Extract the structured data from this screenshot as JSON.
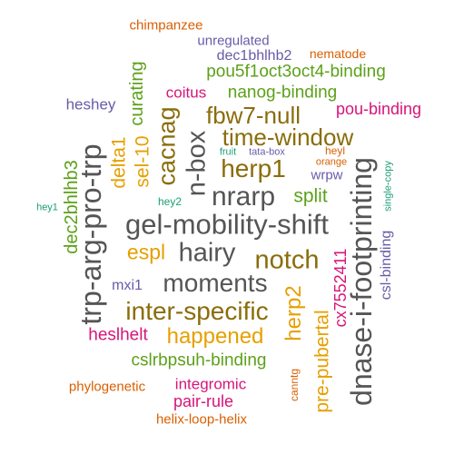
{
  "colors": {
    "gray": "#555555",
    "olive": "#8a6d0b",
    "green": "#5ca11a",
    "purple": "#6a5aa8",
    "magenta": "#d6157a",
    "orange": "#d95f02",
    "gold": "#e6a000",
    "teal": "#1b9e77"
  },
  "words": [
    {
      "id": "chimpanzee",
      "text": "chimpanzee",
      "color": "orange"
    },
    {
      "id": "unregulated",
      "text": "unregulated",
      "color": "purple"
    },
    {
      "id": "dec1bhlhb2",
      "text": "dec1bhlhb2",
      "color": "purple"
    },
    {
      "id": "nematode",
      "text": "nematode",
      "color": "orange"
    },
    {
      "id": "pou5f1",
      "text": "pou5f1oct3oct4-binding",
      "color": "green"
    },
    {
      "id": "curating",
      "text": "curating",
      "color": "green"
    },
    {
      "id": "coitus",
      "text": "coitus",
      "color": "magenta"
    },
    {
      "id": "nanog",
      "text": "nanog-binding",
      "color": "green"
    },
    {
      "id": "heshey",
      "text": "heshey",
      "color": "purple"
    },
    {
      "id": "fbw7null",
      "text": "fbw7-null",
      "color": "olive"
    },
    {
      "id": "poubinding",
      "text": "pou-binding",
      "color": "magenta"
    },
    {
      "id": "cacnag",
      "text": "cacnag",
      "color": "olive"
    },
    {
      "id": "sel10",
      "text": "sel-10",
      "color": "gold"
    },
    {
      "id": "delta1",
      "text": "delta1",
      "color": "gold"
    },
    {
      "id": "nbox",
      "text": "n-box",
      "color": "gray"
    },
    {
      "id": "timewindow",
      "text": "time-window",
      "color": "olive"
    },
    {
      "id": "dec2bhlhb3",
      "text": "dec2bhlhb3",
      "color": "green"
    },
    {
      "id": "trparg",
      "text": "trp-arg-pro-trp",
      "color": "gray"
    },
    {
      "id": "herp1",
      "text": "herp1",
      "color": "olive"
    },
    {
      "id": "fruit",
      "text": "fruit",
      "color": "teal"
    },
    {
      "id": "tatabox",
      "text": "tata-box",
      "color": "purple"
    },
    {
      "id": "heyl",
      "text": "heyl",
      "color": "orange"
    },
    {
      "id": "orange",
      "text": "orange",
      "color": "orange"
    },
    {
      "id": "wrpw",
      "text": "wrpw",
      "color": "purple"
    },
    {
      "id": "singlecopy",
      "text": "single-copy",
      "color": "teal"
    },
    {
      "id": "dnase",
      "text": "dnase-i-footprinting",
      "color": "gray"
    },
    {
      "id": "cslbinding",
      "text": "csl-binding",
      "color": "purple"
    },
    {
      "id": "hey1",
      "text": "hey1",
      "color": "teal"
    },
    {
      "id": "hey2",
      "text": "hey2",
      "color": "teal"
    },
    {
      "id": "nrarp",
      "text": "nrarp",
      "color": "gray"
    },
    {
      "id": "split",
      "text": "split",
      "color": "green"
    },
    {
      "id": "gelmobility",
      "text": "gel-mobility-shift",
      "color": "gray"
    },
    {
      "id": "espl",
      "text": "espl",
      "color": "gold"
    },
    {
      "id": "hairy",
      "text": "hairy",
      "color": "gray"
    },
    {
      "id": "notch",
      "text": "notch",
      "color": "olive"
    },
    {
      "id": "moments",
      "text": "moments",
      "color": "gray"
    },
    {
      "id": "mxi1",
      "text": "mxi1",
      "color": "purple"
    },
    {
      "id": "herp2",
      "text": "herp2",
      "color": "gold"
    },
    {
      "id": "cx7552411",
      "text": "cx7552411",
      "color": "magenta"
    },
    {
      "id": "interspecific",
      "text": "inter-specific",
      "color": "olive"
    },
    {
      "id": "heslhelt",
      "text": "heslhelt",
      "color": "magenta"
    },
    {
      "id": "happened",
      "text": "happened",
      "color": "gold"
    },
    {
      "id": "prepubertal",
      "text": "pre-pubertal",
      "color": "gold"
    },
    {
      "id": "cslrbpsuh",
      "text": "cslrbpsuh-binding",
      "color": "green"
    },
    {
      "id": "canntg",
      "text": "canntg",
      "color": "orange"
    },
    {
      "id": "phylogenetic",
      "text": "phylogenetic",
      "color": "orange"
    },
    {
      "id": "integromic",
      "text": "integromic",
      "color": "magenta"
    },
    {
      "id": "pairrule",
      "text": "pair-rule",
      "color": "magenta"
    },
    {
      "id": "helixloop",
      "text": "helix-loop-helix",
      "color": "orange"
    }
  ]
}
